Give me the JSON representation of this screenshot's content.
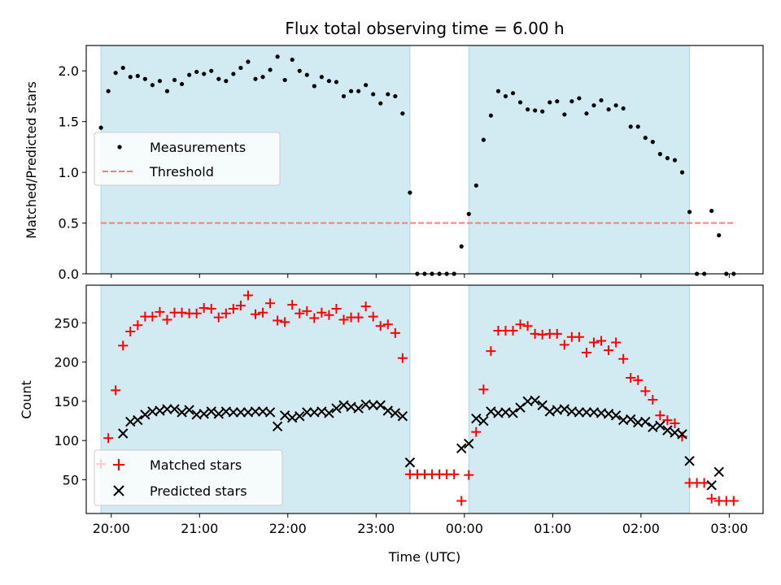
{
  "chart_data": [
    {
      "type": "scatter",
      "title": "Flux total observing time = 6.00 h",
      "xlabel": "",
      "ylabel": "Matched/Predicted stars",
      "xlim": [
        "19:43",
        "03:23"
      ],
      "ylim": [
        0.0,
        2.25
      ],
      "x_ticks": [
        "20:00",
        "21:00",
        "22:00",
        "23:00",
        "00:00",
        "01:00",
        "02:00",
        "03:00"
      ],
      "x_ticks_shown": false,
      "y_ticks": [
        "0.0",
        "0.5",
        "1.0",
        "1.5",
        "2.0"
      ],
      "shaded_intervals": [
        [
          "19:53",
          "23:23"
        ],
        [
          "00:03",
          "02:33"
        ]
      ],
      "shade_color": "#add8e6",
      "threshold": {
        "name": "Threshold",
        "value": 0.5,
        "x_range": [
          "19:53",
          "03:03"
        ],
        "color": "#f08080"
      },
      "legend": {
        "placement": "center-left"
      },
      "series": [
        {
          "name": "Measurements",
          "color": "#000000",
          "marker": "dot",
          "points": [
            [
              "19:53",
              1.44
            ],
            [
              "19:58",
              1.8
            ],
            [
              "20:03",
              1.98
            ],
            [
              "20:08",
              2.03
            ],
            [
              "20:13",
              1.94
            ],
            [
              "20:18",
              1.95
            ],
            [
              "20:23",
              1.92
            ],
            [
              "20:28",
              1.86
            ],
            [
              "20:33",
              1.9
            ],
            [
              "20:38",
              1.8
            ],
            [
              "20:43",
              1.91
            ],
            [
              "20:48",
              1.87
            ],
            [
              "20:53",
              1.96
            ],
            [
              "20:58",
              1.99
            ],
            [
              "21:03",
              1.97
            ],
            [
              "21:08",
              2.0
            ],
            [
              "21:13",
              1.92
            ],
            [
              "21:18",
              1.9
            ],
            [
              "21:23",
              1.97
            ],
            [
              "21:28",
              2.03
            ],
            [
              "21:33",
              2.09
            ],
            [
              "21:38",
              1.92
            ],
            [
              "21:43",
              1.94
            ],
            [
              "21:48",
              2.01
            ],
            [
              "21:53",
              2.14
            ],
            [
              "21:58",
              1.91
            ],
            [
              "22:03",
              2.11
            ],
            [
              "22:08",
              2.0
            ],
            [
              "22:13",
              1.96
            ],
            [
              "22:18",
              1.85
            ],
            [
              "22:23",
              1.94
            ],
            [
              "22:28",
              1.9
            ],
            [
              "22:33",
              1.89
            ],
            [
              "22:38",
              1.75
            ],
            [
              "22:43",
              1.8
            ],
            [
              "22:48",
              1.8
            ],
            [
              "22:53",
              1.86
            ],
            [
              "22:58",
              1.77
            ],
            [
              "23:03",
              1.68
            ],
            [
              "23:08",
              1.77
            ],
            [
              "23:13",
              1.75
            ],
            [
              "23:18",
              1.58
            ],
            [
              "23:23",
              0.8
            ],
            [
              "23:28",
              0.0
            ],
            [
              "23:33",
              0.0
            ],
            [
              "23:38",
              0.0
            ],
            [
              "23:43",
              0.0
            ],
            [
              "23:48",
              0.0
            ],
            [
              "23:53",
              0.0
            ],
            [
              "23:58",
              0.27
            ],
            [
              "00:03",
              0.59
            ],
            [
              "00:08",
              0.87
            ],
            [
              "00:13",
              1.32
            ],
            [
              "00:18",
              1.56
            ],
            [
              "00:23",
              1.8
            ],
            [
              "00:28",
              1.75
            ],
            [
              "00:33",
              1.78
            ],
            [
              "00:38",
              1.69
            ],
            [
              "00:43",
              1.62
            ],
            [
              "00:48",
              1.61
            ],
            [
              "00:53",
              1.6
            ],
            [
              "00:58",
              1.69
            ],
            [
              "01:03",
              1.7
            ],
            [
              "01:08",
              1.57
            ],
            [
              "01:13",
              1.7
            ],
            [
              "01:18",
              1.73
            ],
            [
              "01:23",
              1.58
            ],
            [
              "01:28",
              1.66
            ],
            [
              "01:33",
              1.71
            ],
            [
              "01:38",
              1.62
            ],
            [
              "01:43",
              1.66
            ],
            [
              "01:48",
              1.63
            ],
            [
              "01:53",
              1.45
            ],
            [
              "01:58",
              1.45
            ],
            [
              "02:03",
              1.34
            ],
            [
              "02:08",
              1.3
            ],
            [
              "02:13",
              1.18
            ],
            [
              "02:18",
              1.14
            ],
            [
              "02:23",
              1.12
            ],
            [
              "02:28",
              1.0
            ],
            [
              "02:33",
              0.61
            ],
            [
              "02:38",
              0.0
            ],
            [
              "02:43",
              0.0
            ],
            [
              "02:48",
              0.62
            ],
            [
              "02:53",
              0.38
            ],
            [
              "02:58",
              0.0
            ],
            [
              "03:03",
              0.0
            ]
          ]
        }
      ]
    },
    {
      "type": "scatter",
      "title": "",
      "xlabel": "Time (UTC)",
      "ylabel": "Count",
      "xlim": [
        "19:43",
        "03:23"
      ],
      "ylim": [
        7,
        298
      ],
      "x_ticks": [
        "20:00",
        "21:00",
        "22:00",
        "23:00",
        "00:00",
        "01:00",
        "02:00",
        "03:00"
      ],
      "y_ticks": [
        "50",
        "100",
        "150",
        "200",
        "250"
      ],
      "shaded_intervals": [
        [
          "19:53",
          "23:23"
        ],
        [
          "00:03",
          "02:33"
        ]
      ],
      "shade_color": "#add8e6",
      "legend": {
        "placement": "lower-left"
      },
      "series": [
        {
          "name": "Matched stars",
          "color": "#ff0000",
          "marker": "plus",
          "points": [
            [
              "19:53",
              70
            ],
            [
              "19:58",
              103
            ],
            [
              "20:03",
              164
            ],
            [
              "20:08",
              221
            ],
            [
              "20:13",
              239
            ],
            [
              "20:18",
              247
            ],
            [
              "20:23",
              258
            ],
            [
              "20:28",
              258
            ],
            [
              "20:33",
              264
            ],
            [
              "20:38",
              254
            ],
            [
              "20:43",
              263
            ],
            [
              "20:48",
              263
            ],
            [
              "20:53",
              262
            ],
            [
              "20:58",
              262
            ],
            [
              "21:03",
              269
            ],
            [
              "21:08",
              268
            ],
            [
              "21:13",
              257
            ],
            [
              "21:18",
              262
            ],
            [
              "21:23",
              268
            ],
            [
              "21:28",
              272
            ],
            [
              "21:33",
              285
            ],
            [
              "21:38",
              261
            ],
            [
              "21:43",
              263
            ],
            [
              "21:48",
              275
            ],
            [
              "21:53",
              253
            ],
            [
              "21:58",
              251
            ],
            [
              "22:03",
              273
            ],
            [
              "22:08",
              262
            ],
            [
              "22:13",
              265
            ],
            [
              "22:18",
              256
            ],
            [
              "22:23",
              263
            ],
            [
              "22:28",
              260
            ],
            [
              "22:33",
              268
            ],
            [
              "22:38",
              254
            ],
            [
              "22:43",
              257
            ],
            [
              "22:48",
              257
            ],
            [
              "22:53",
              271
            ],
            [
              "22:58",
              258
            ],
            [
              "23:03",
              246
            ],
            [
              "23:08",
              248
            ],
            [
              "23:13",
              237
            ],
            [
              "23:18",
              205
            ],
            [
              "23:23",
              57
            ],
            [
              "23:28",
              57
            ],
            [
              "23:33",
              57
            ],
            [
              "23:38",
              57
            ],
            [
              "23:43",
              57
            ],
            [
              "23:48",
              57
            ],
            [
              "23:53",
              57
            ],
            [
              "23:58",
              23
            ],
            [
              "00:03",
              56
            ],
            [
              "00:08",
              111
            ],
            [
              "00:13",
              165
            ],
            [
              "00:18",
              214
            ],
            [
              "00:23",
              240
            ],
            [
              "00:28",
              240
            ],
            [
              "00:33",
              240
            ],
            [
              "00:38",
              248
            ],
            [
              "00:43",
              246
            ],
            [
              "00:48",
              236
            ],
            [
              "00:53",
              235
            ],
            [
              "00:58",
              236
            ],
            [
              "01:03",
              236
            ],
            [
              "01:08",
              222
            ],
            [
              "01:13",
              232
            ],
            [
              "01:18",
              232
            ],
            [
              "01:23",
              212
            ],
            [
              "01:28",
              225
            ],
            [
              "01:33",
              227
            ],
            [
              "01:38",
              215
            ],
            [
              "01:43",
              225
            ],
            [
              "01:48",
              204
            ],
            [
              "01:53",
              180
            ],
            [
              "01:58",
              177
            ],
            [
              "02:03",
              163
            ],
            [
              "02:08",
              152
            ],
            [
              "02:13",
              132
            ],
            [
              "02:18",
              126
            ],
            [
              "02:23",
              122
            ],
            [
              "02:28",
              105
            ],
            [
              "02:33",
              46
            ],
            [
              "02:38",
              46
            ],
            [
              "02:43",
              46
            ],
            [
              "02:48",
              26
            ],
            [
              "02:53",
              23
            ],
            [
              "02:58",
              23
            ],
            [
              "03:03",
              23
            ]
          ]
        },
        {
          "name": "Predicted stars",
          "color": "#000000",
          "marker": "x",
          "points": [
            [
              "20:08",
              109
            ],
            [
              "20:13",
              124
            ],
            [
              "20:18",
              126
            ],
            [
              "20:23",
              133
            ],
            [
              "20:28",
              137
            ],
            [
              "20:33",
              138
            ],
            [
              "20:38",
              140
            ],
            [
              "20:43",
              140
            ],
            [
              "20:48",
              136
            ],
            [
              "20:53",
              139
            ],
            [
              "20:58",
              133
            ],
            [
              "21:03",
              134
            ],
            [
              "21:08",
              137
            ],
            [
              "21:13",
              134
            ],
            [
              "21:18",
              137
            ],
            [
              "21:23",
              136
            ],
            [
              "21:28",
              136
            ],
            [
              "21:33",
              136
            ],
            [
              "21:38",
              137
            ],
            [
              "21:43",
              137
            ],
            [
              "21:48",
              136
            ],
            [
              "21:53",
              118
            ],
            [
              "21:58",
              132
            ],
            [
              "22:03",
              129
            ],
            [
              "22:08",
              131
            ],
            [
              "22:13",
              136
            ],
            [
              "22:18",
              136
            ],
            [
              "22:23",
              137
            ],
            [
              "22:28",
              135
            ],
            [
              "22:33",
              141
            ],
            [
              "22:38",
              145
            ],
            [
              "22:43",
              143
            ],
            [
              "22:48",
              141
            ],
            [
              "22:53",
              146
            ],
            [
              "22:58",
              145
            ],
            [
              "23:03",
              145
            ],
            [
              "23:08",
              138
            ],
            [
              "23:13",
              135
            ],
            [
              "23:18",
              131
            ],
            [
              "23:23",
              72
            ],
            [
              "23:58",
              90
            ],
            [
              "00:03",
              96
            ],
            [
              "00:08",
              128
            ],
            [
              "00:13",
              125
            ],
            [
              "00:18",
              137
            ],
            [
              "00:23",
              135
            ],
            [
              "00:28",
              136
            ],
            [
              "00:33",
              135
            ],
            [
              "00:38",
              142
            ],
            [
              "00:43",
              150
            ],
            [
              "00:48",
              151
            ],
            [
              "00:53",
              145
            ],
            [
              "00:58",
              137
            ],
            [
              "01:03",
              139
            ],
            [
              "01:08",
              140
            ],
            [
              "01:13",
              137
            ],
            [
              "01:18",
              136
            ],
            [
              "01:23",
              136
            ],
            [
              "01:28",
              136
            ],
            [
              "01:33",
              135
            ],
            [
              "01:38",
              134
            ],
            [
              "01:43",
              132
            ],
            [
              "01:48",
              126
            ],
            [
              "01:53",
              127
            ],
            [
              "01:58",
              123
            ],
            [
              "02:03",
              124
            ],
            [
              "02:08",
              117
            ],
            [
              "02:13",
              119
            ],
            [
              "02:18",
              113
            ],
            [
              "02:23",
              110
            ],
            [
              "02:28",
              108
            ],
            [
              "02:33",
              74
            ],
            [
              "02:48",
              43
            ],
            [
              "02:53",
              60
            ]
          ]
        }
      ]
    }
  ]
}
